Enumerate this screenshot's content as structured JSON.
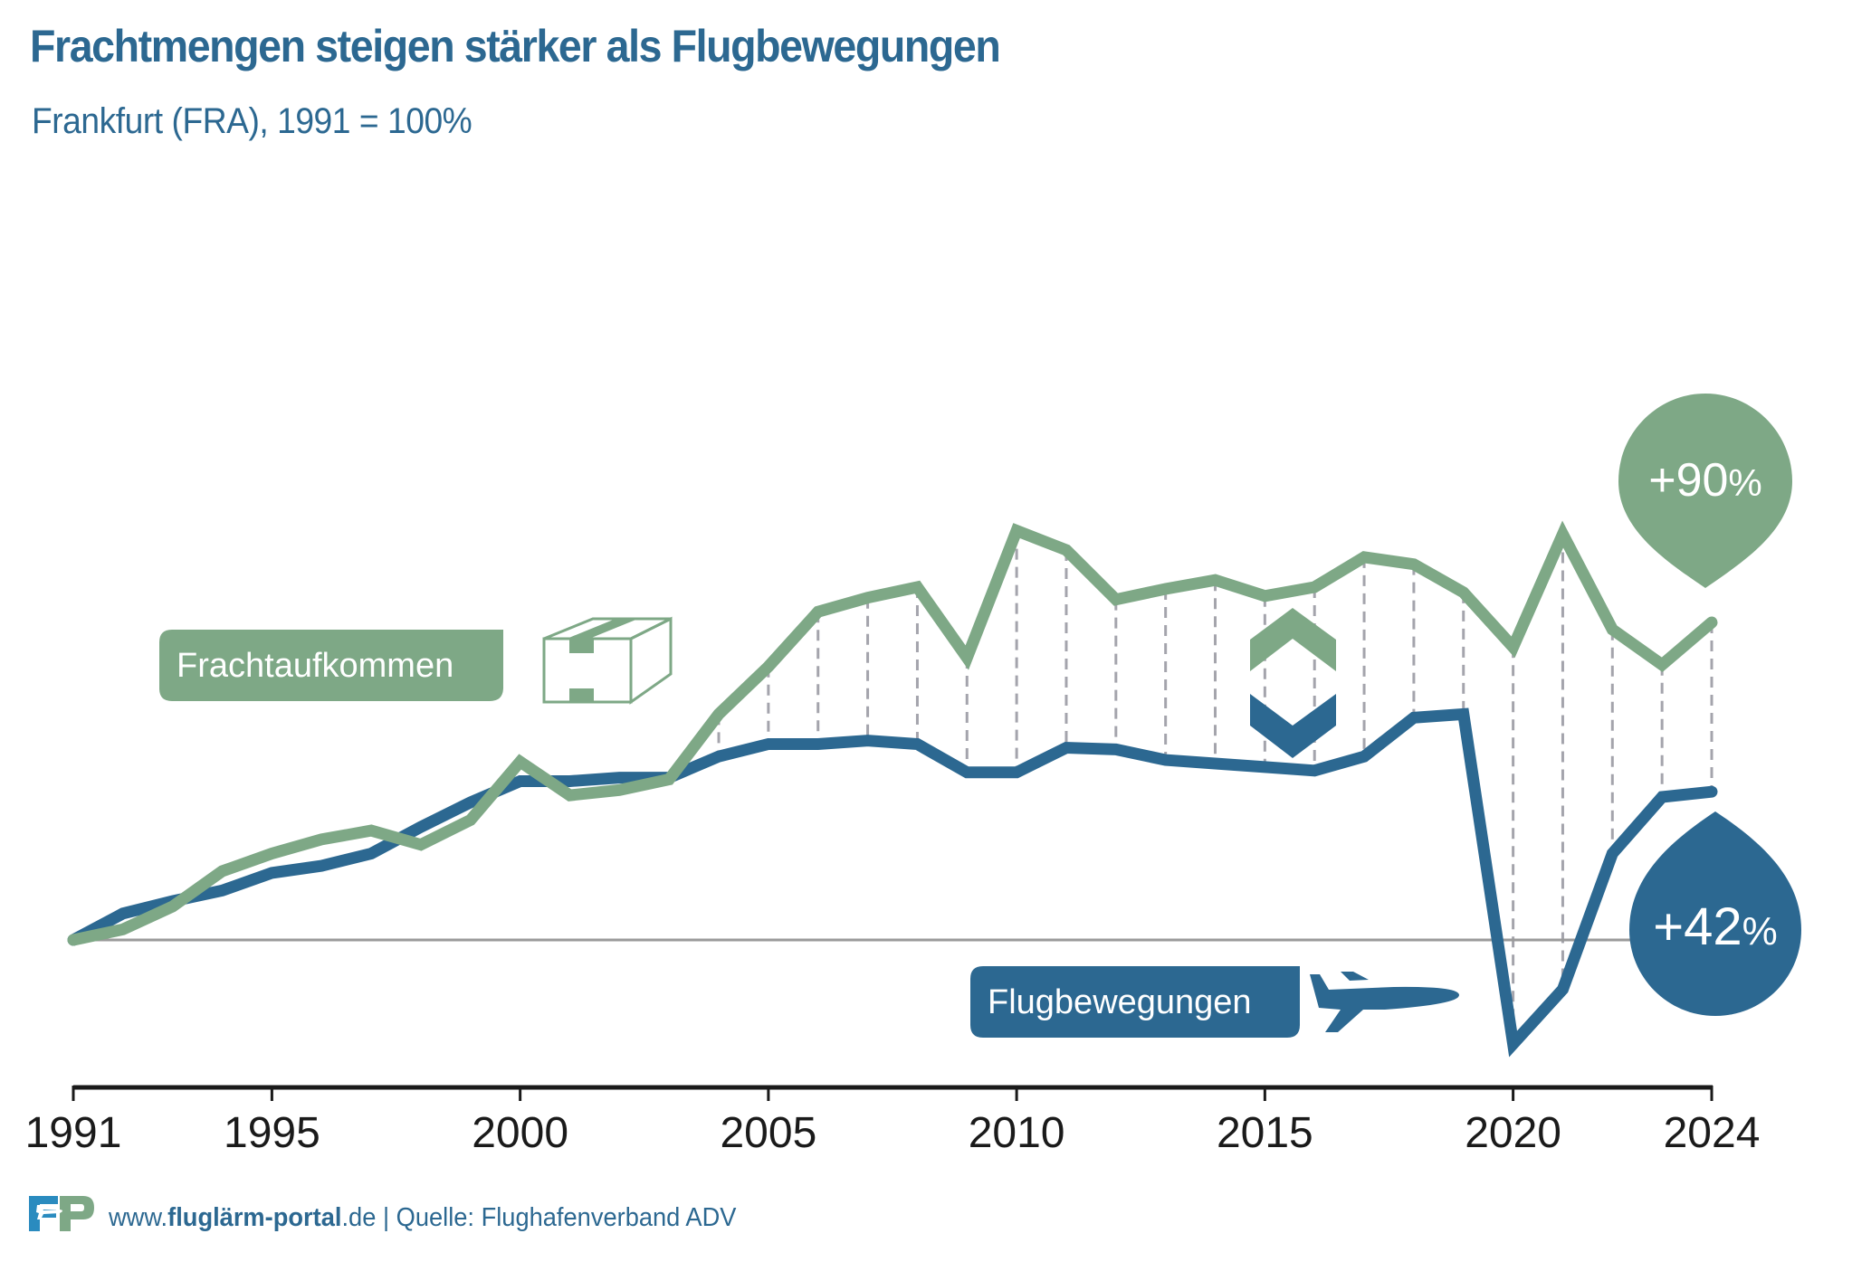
{
  "header": {
    "title": "Frachtmengen steigen stärker als Flugbewegungen",
    "subtitle": "Frankfurt (FRA), 1991 = 100%"
  },
  "labels": {
    "freight": "Frachtaufkommen",
    "flights": "Flugbewegungen",
    "freight_change": "+90",
    "flights_change": "+42",
    "percent_sign": "%"
  },
  "icons": {
    "freight": "box-icon",
    "flights": "airplane-icon",
    "divergence": "chevron-up-down-icon",
    "logo": "fp-logo"
  },
  "footer": {
    "url_prefix": "www.",
    "url_bold": "fluglärm-portal",
    "url_suffix": ".de",
    "separator": " | ",
    "source": "Quelle: Flughafenverband ADV"
  },
  "colors": {
    "freight": "#7ea886",
    "flights": "#2c6891",
    "baseline": "#9a9a9a",
    "dash": "#a4a4ac",
    "axis": "#1a1a1a"
  },
  "chart_data": {
    "type": "line",
    "title": "Frachtmengen steigen stärker als Flugbewegungen",
    "subtitle": "Frankfurt (FRA), 1991 = 100%",
    "xlabel": "",
    "ylabel": "",
    "x": [
      1991,
      1992,
      1993,
      1994,
      1995,
      1996,
      1997,
      1998,
      1999,
      2000,
      2001,
      2002,
      2003,
      2004,
      2005,
      2006,
      2007,
      2008,
      2009,
      2010,
      2011,
      2012,
      2013,
      2014,
      2015,
      2016,
      2017,
      2018,
      2019,
      2020,
      2021,
      2022,
      2023,
      2024
    ],
    "xticks": [
      "1991",
      "1995",
      "2000",
      "2005",
      "2010",
      "2015",
      "2020",
      "2024"
    ],
    "baseline": 100,
    "ylim": [
      55,
      240
    ],
    "grid": false,
    "legend": "inline-labels",
    "series": [
      {
        "name": "Frachtaufkommen",
        "color": "#7ea886",
        "values": [
          100,
          103,
          109.5,
          119.5,
          124.5,
          128.5,
          131,
          127,
          134,
          150.5,
          141,
          142.5,
          145.5,
          164,
          177.5,
          193,
          197,
          200,
          180,
          216,
          210.5,
          196.5,
          199.5,
          202,
          197.5,
          200,
          208.5,
          206.5,
          198.5,
          183,
          215,
          188,
          178,
          190
        ]
      },
      {
        "name": "Flugbewegungen",
        "color": "#2c6891",
        "values": [
          100,
          107.5,
          111,
          114,
          119,
          121,
          124.5,
          132,
          139,
          145,
          145,
          146,
          146,
          152,
          155.5,
          155.5,
          156.5,
          155.5,
          147.5,
          147.5,
          154.5,
          154,
          151,
          150,
          149,
          148,
          152,
          163,
          164,
          70.5,
          86,
          124.5,
          140.5,
          142
        ]
      }
    ],
    "annotations": [
      {
        "text": "+90%",
        "series": "Frachtaufkommen",
        "year": 2024
      },
      {
        "text": "+42%",
        "series": "Flugbewegungen",
        "year": 2024
      }
    ],
    "connector_lines_from_year": 2004
  }
}
